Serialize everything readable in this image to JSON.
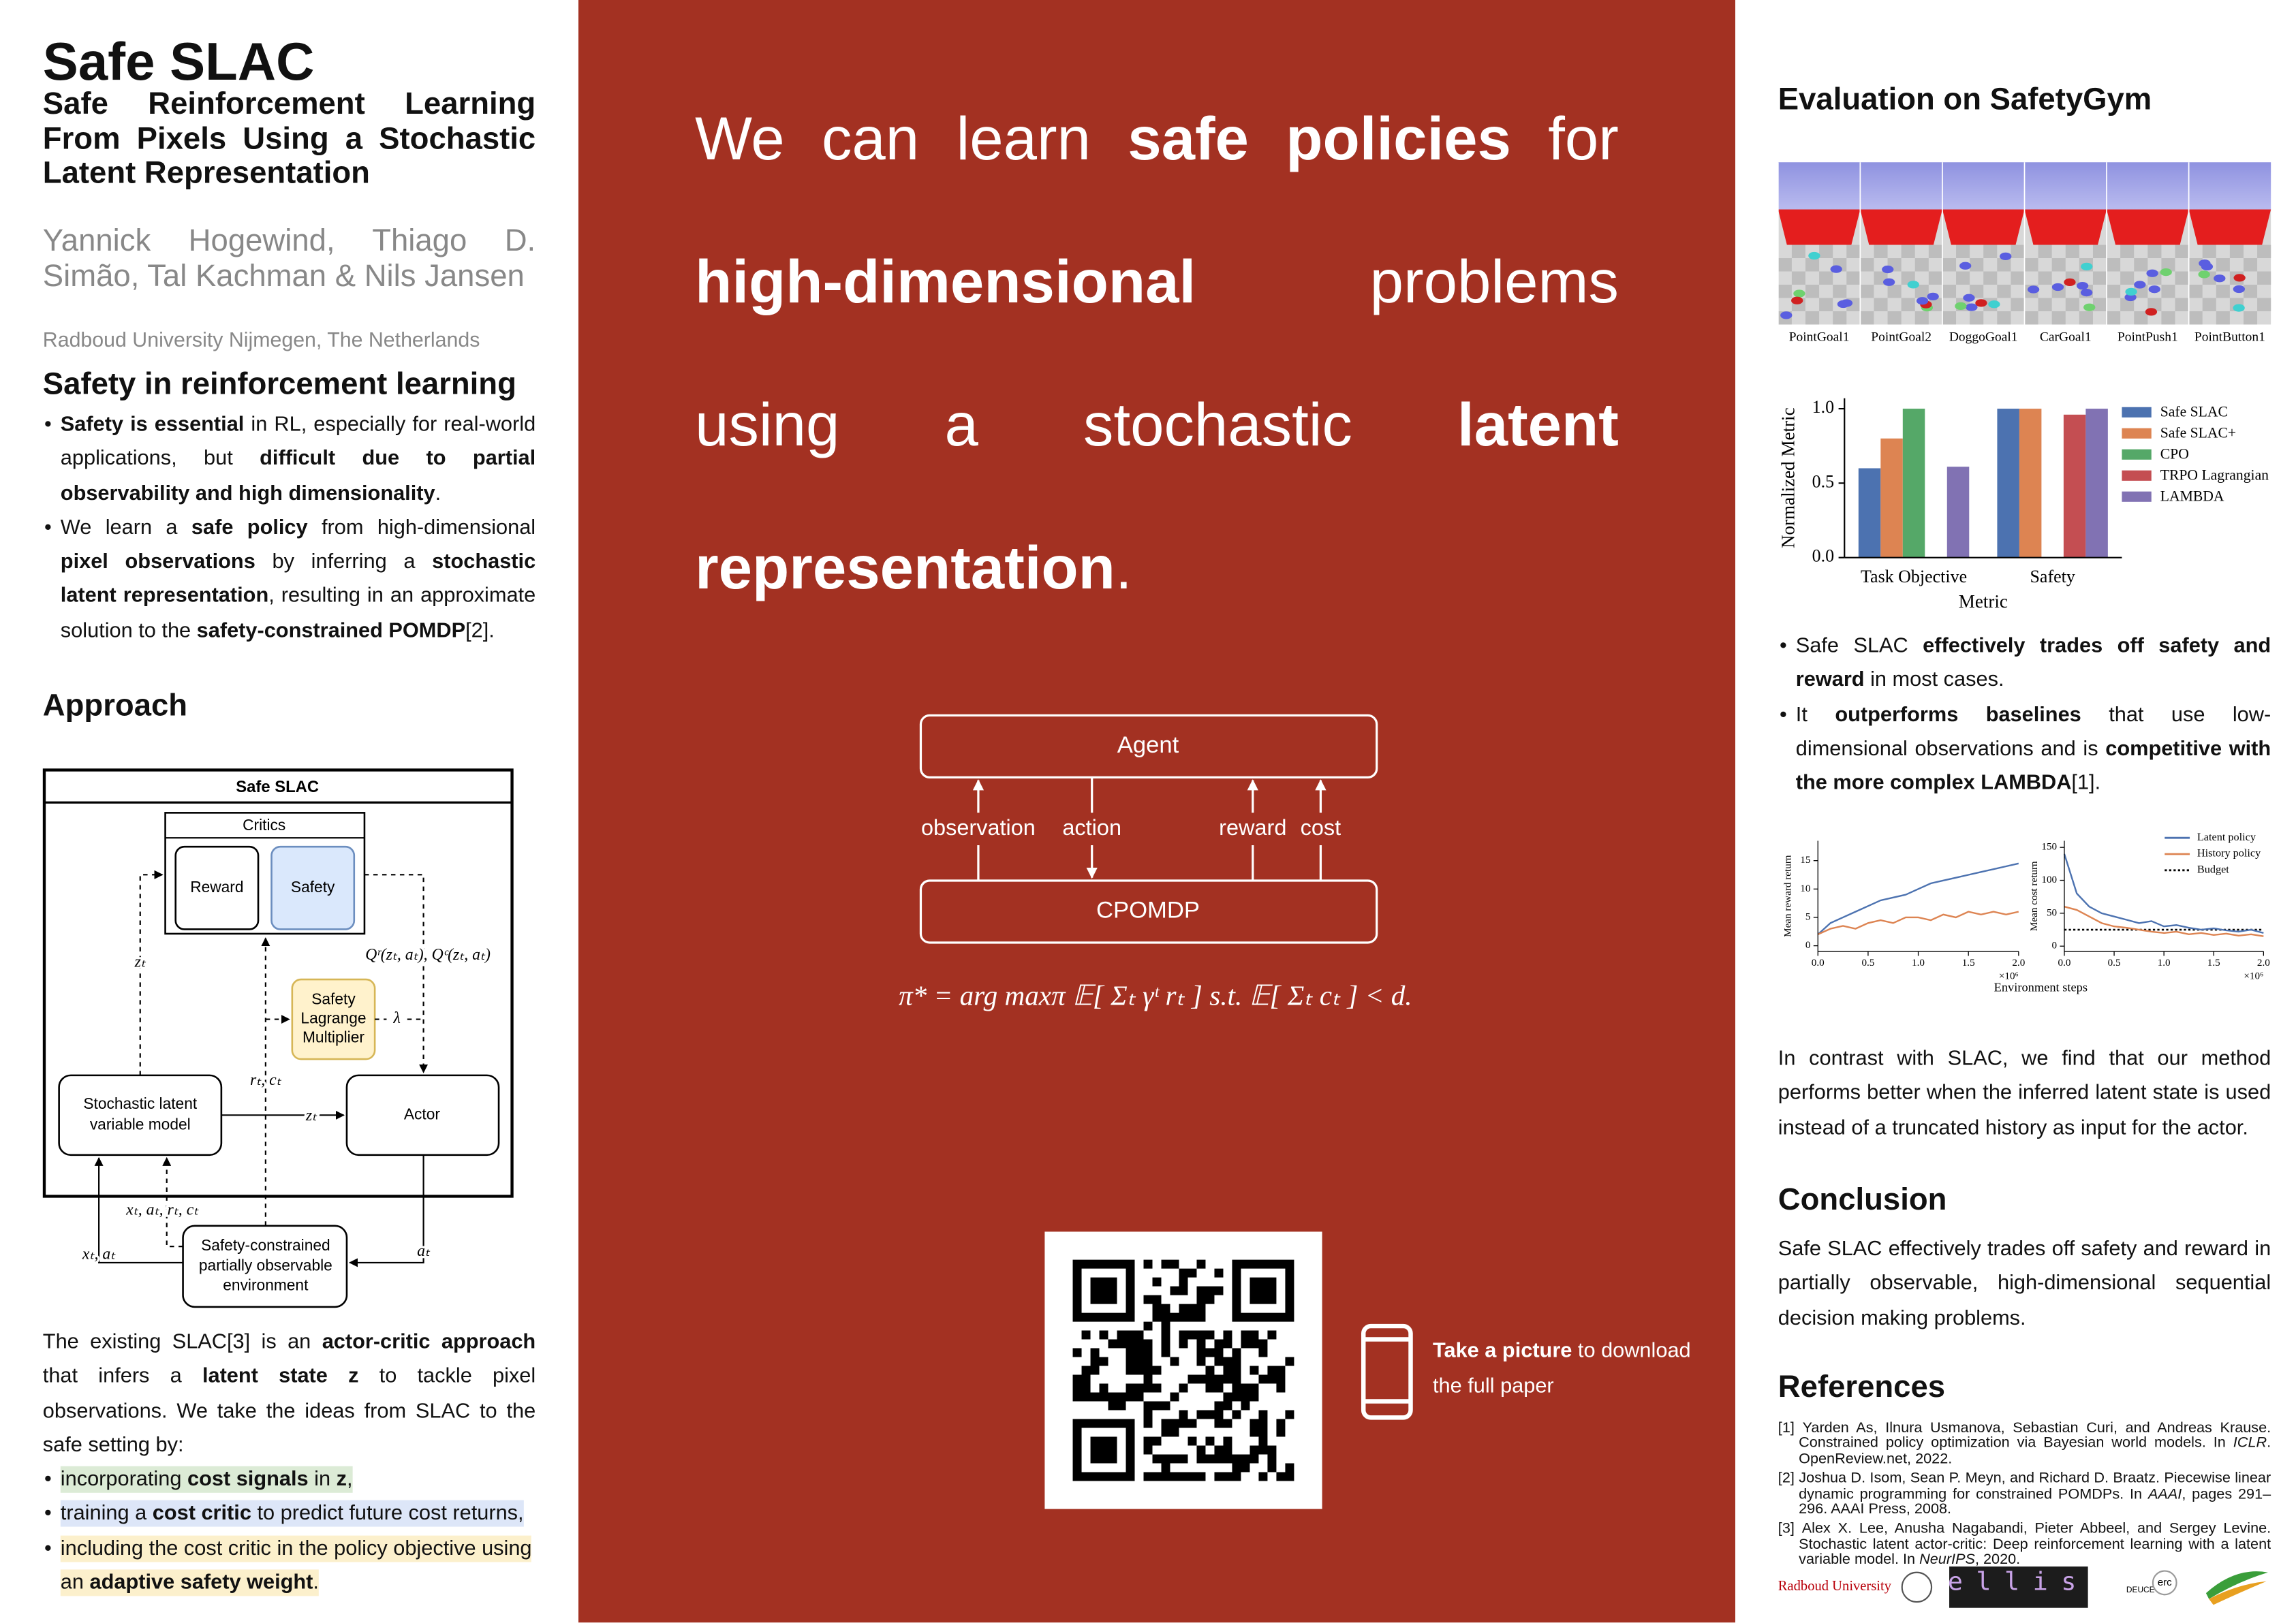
{
  "header": {
    "title": "Safe SLAC",
    "subtitle": "Safe Reinforcement Learning From Pixels Using a Stochastic Latent Representation",
    "authors": "Yannick Hogewind, Thiago D. Simão, Tal Kachman & Nils Jansen",
    "affiliation": "Radboud University Nijmegen, The Netherlands"
  },
  "intro": {
    "heading": "Safety in reinforcement learning",
    "bullets": [
      {
        "runs": [
          {
            "bold": "Safety is essential"
          },
          " in RL, especially for real-world applications, but ",
          {
            "bold": "difficult due to partial observability and high dimensionality"
          },
          "."
        ]
      },
      {
        "runs": [
          "We learn a ",
          {
            "bold": "safe policy"
          },
          " from high-dimensional ",
          {
            "bold": "pixel observations"
          },
          " by inferring a ",
          {
            "bold": "stochastic latent representation"
          },
          ", resulting in an approximate solution to the ",
          {
            "bold": "safety-constrained POMDP"
          },
          "[2]."
        ]
      }
    ]
  },
  "approach": {
    "heading": "Approach",
    "diagram": {
      "title": "Safe SLAC",
      "critics": "Critics",
      "reward": "Reward",
      "safety": "Safety",
      "lagrange": [
        "Safety",
        "Lagrange",
        "Multiplier"
      ],
      "latent_model": [
        "Stochastic latent",
        "variable model"
      ],
      "actor": "Actor",
      "environment": [
        "Safety-constrained",
        "partially observable",
        "environment"
      ],
      "edge_labels": {
        "z_critic": "zₜ",
        "q_values": "Qʳ(zₜ, aₜ), Qᶜ(zₜ, aₜ)",
        "lambda": "λ",
        "rewards_costs": "rₜ, cₜ",
        "z_actor": "zₜ",
        "transitions": "xₜ, aₜ, rₜ, cₜ",
        "observations": "xₜ, aₜ",
        "actions": "aₜ"
      }
    },
    "paragraph": [
      "The existing SLAC[3] is an ",
      {
        "bold": "actor-critic approach"
      },
      " that infers a ",
      {
        "bold": "latent state z"
      },
      " to tackle pixel observations. We take the ideas from SLAC to the safe setting by:"
    ],
    "bullets": [
      {
        "highlight": "#dcebd6",
        "runs": [
          "incorporating ",
          {
            "bold": "cost signals"
          },
          " in ",
          {
            "bold": "z"
          },
          ","
        ]
      },
      {
        "highlight": "#dde6f8",
        "runs": [
          "training a ",
          {
            "bold": "cost critic"
          },
          " to predict future cost returns,"
        ]
      },
      {
        "highlight": "#fcf0cc",
        "runs": [
          "including the cost critic in the policy objective using an ",
          {
            "bold": "adaptive safety weight"
          },
          "."
        ]
      }
    ]
  },
  "message": {
    "headline": [
      "We can learn ",
      {
        "bold": "safe policies"
      },
      " for ",
      {
        "bold": "high-dimensional"
      },
      " problems using a stochastic ",
      {
        "bold": "latent representation"
      },
      "."
    ],
    "diagram": {
      "agent": "Agent",
      "environment": "CPOMDP",
      "observation": "observation",
      "action": "action",
      "reward": "reward",
      "cost": "cost"
    },
    "objective": "π* = arg maxπ 𝔼[ Σₜ γᵗ rₜ ]    s.t.    𝔼[ Σₜ cₜ ] < d.",
    "call_to_action": [
      {
        "bold": "Take a picture"
      },
      " to download the full paper"
    ]
  },
  "evaluation": {
    "heading": "Evaluation on SafetyGym",
    "environments": [
      "PointGoal1",
      "PointGoal2",
      "DoggoGoal1",
      "CarGoal1",
      "PointPush1",
      "PointButton1"
    ],
    "bullets": [
      {
        "runs": [
          "Safe SLAC ",
          {
            "bold": "effectively trades off safety and reward"
          },
          " in most cases."
        ]
      },
      {
        "runs": [
          "It ",
          {
            "bold": "outperforms baselines"
          },
          " that use low-dimensional observations and is ",
          {
            "bold": "competitive with the more complex LAMBDA"
          },
          "[1]."
        ]
      }
    ],
    "paragraph": "In contrast with SLAC, we find that our method performs better when the inferred latent state is used instead of a truncated history as input for the actor."
  },
  "chart_data": [
    {
      "type": "bar",
      "categories": [
        "Task Objective",
        "Safety"
      ],
      "series": [
        {
          "name": "Safe SLAC",
          "color": "#4c72b0",
          "values": [
            0.6,
            1.0
          ]
        },
        {
          "name": "Safe SLAC+",
          "color": "#dd8452",
          "values": [
            0.8,
            1.0
          ]
        },
        {
          "name": "CPO",
          "color": "#55a868",
          "values": [
            1.0,
            null
          ]
        },
        {
          "name": "TRPO Lagrangian",
          "color": "#c44e52",
          "values": [
            null,
            0.96
          ]
        },
        {
          "name": "LAMBDA",
          "color": "#8172b3",
          "values": [
            0.61,
            1.0
          ]
        }
      ],
      "ylim": [
        0,
        1.07
      ],
      "yticks": [
        {
          "value": 0,
          "label": "0.0"
        },
        {
          "value": 0.5,
          "label": "0.5"
        },
        {
          "value": 1,
          "label": "1.0"
        }
      ],
      "ylabel": "Normalized Metric",
      "xlabel": "Metric",
      "legend": "right"
    },
    {
      "type": "line",
      "x": [
        0,
        0.125,
        0.25,
        0.375,
        0.5,
        0.625,
        0.75,
        0.875,
        1.0,
        1.125,
        1.25,
        1.375,
        1.5,
        1.625,
        1.75,
        1.875,
        2.0
      ],
      "series": [
        {
          "color": "#4c72b0",
          "values": [
            2,
            4,
            5,
            6,
            7,
            8,
            8.5,
            9,
            10,
            11,
            11.5,
            12,
            12.5,
            13,
            13.5,
            14,
            14.5
          ]
        },
        {
          "color": "#dd8452",
          "values": [
            2,
            3,
            3.5,
            3,
            4,
            4.5,
            4,
            5,
            5,
            4.5,
            5.5,
            5,
            6,
            5.5,
            6,
            5.5,
            6
          ]
        }
      ],
      "xlim": [
        0,
        2
      ],
      "xticks": [
        {
          "value": 0,
          "label": "0.0"
        },
        {
          "value": 0.5,
          "label": "0.5"
        },
        {
          "value": 1,
          "label": "1.0"
        },
        {
          "value": 1.5,
          "label": "1.5"
        },
        {
          "value": 2,
          "label": "2.0"
        }
      ],
      "x_multiplier": "×10⁶",
      "ylim": [
        -1,
        18.5
      ],
      "yticks": [
        0,
        5,
        10,
        15
      ],
      "ylabel": "Mean reward return"
    },
    {
      "type": "line",
      "x": [
        0,
        0.125,
        0.25,
        0.375,
        0.5,
        0.625,
        0.75,
        0.875,
        1.0,
        1.125,
        1.25,
        1.375,
        1.5,
        1.625,
        1.75,
        1.875,
        2.0
      ],
      "series": [
        {
          "name": "Latent policy",
          "color": "#4c72b0",
          "values": [
            140,
            80,
            60,
            50,
            45,
            40,
            35,
            38,
            30,
            32,
            28,
            25,
            27,
            24,
            22,
            25,
            20
          ]
        },
        {
          "name": "History policy",
          "color": "#dd8452",
          "values": [
            60,
            55,
            45,
            35,
            30,
            28,
            25,
            22,
            20,
            22,
            18,
            20,
            17,
            19,
            16,
            18,
            15
          ]
        }
      ],
      "hlines": [
        {
          "name": "Budget",
          "value": 25,
          "color": "#000000"
        }
      ],
      "xlim": [
        0,
        2
      ],
      "xticks": [
        {
          "value": 0,
          "label": "0.0"
        },
        {
          "value": 0.5,
          "label": "0.5"
        },
        {
          "value": 1,
          "label": "1.0"
        },
        {
          "value": 1.5,
          "label": "1.5"
        },
        {
          "value": 2,
          "label": "2.0"
        }
      ],
      "x_multiplier": "×10⁶",
      "ylim": [
        -8,
        160
      ],
      "yticks": [
        0,
        50,
        100,
        150
      ],
      "ylabel": "Mean cost return",
      "xlabel": "Environment steps",
      "legend": "upper right"
    }
  ],
  "conclusion": {
    "heading": "Conclusion",
    "text": "Safe SLAC effectively trades off safety and reward in partially observable, high-dimensional sequential decision making problems."
  },
  "references": {
    "heading": "References",
    "items": [
      {
        "label": "[1]",
        "runs": [
          "Yarden As, Ilnura Usmanova, Sebastian Curi, and Andreas Krause. Constrained policy optimization via Bayesian world models. In ",
          {
            "italic": "ICLR"
          },
          ". OpenReview.net, 2022."
        ]
      },
      {
        "label": "[2]",
        "runs": [
          "Joshua D. Isom, Sean P. Meyn, and Richard D. Braatz. Piecewise linear dynamic programming for constrained POMDPs. In ",
          {
            "italic": "AAAI"
          },
          ", pages 291–296. AAAI Press, 2008."
        ]
      },
      {
        "label": "[3]",
        "runs": [
          "Alex X. Lee, Anusha Nagabandi, Pieter Abbeel, and Sergey Levine. Stochastic latent actor-critic: Deep reinforcement learning with a latent variable model. In ",
          {
            "italic": "NeurIPS"
          },
          ", 2020."
        ]
      }
    ]
  },
  "logos": {
    "radboud": "Radboud University",
    "ellis": "ellis",
    "deuce": "DEUCE",
    "erc": "erc"
  }
}
